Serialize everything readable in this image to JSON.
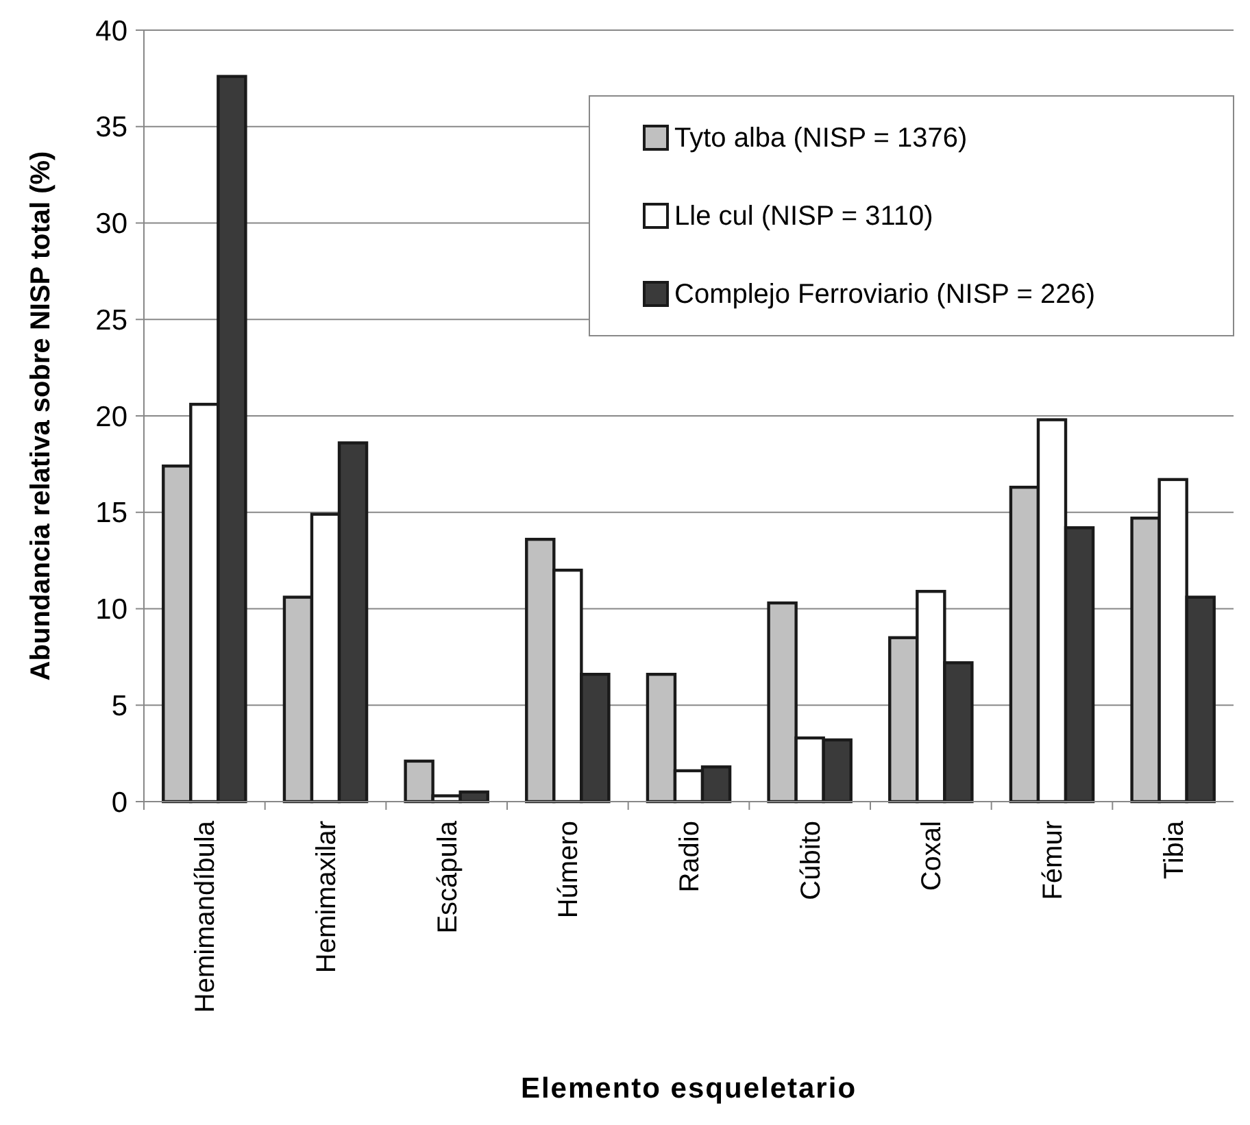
{
  "chart_data": {
    "type": "bar",
    "xlabel": "Elemento esqueletario",
    "ylabel": "Abundancia relativa sobre NISP total (%)",
    "categories": [
      "Hemimandíbula",
      "Hemimaxilar",
      "Escápula",
      "Húmero",
      "Radio",
      "Cúbito",
      "Coxal",
      "Fémur",
      "Tibia"
    ],
    "series": [
      {
        "name": "Tyto alba (NISP = 1376)",
        "color": "#c0c0c0",
        "values": [
          17.4,
          10.6,
          2.1,
          13.6,
          6.6,
          10.3,
          8.5,
          16.3,
          14.7
        ]
      },
      {
        "name": "Lle cul (NISP = 3110)",
        "color": "#ffffff",
        "values": [
          20.6,
          14.9,
          0.3,
          12.0,
          1.6,
          3.3,
          10.9,
          19.8,
          16.7
        ]
      },
      {
        "name": "Complejo Ferroviario (NISP = 226)",
        "color": "#3a3a3a",
        "values": [
          37.6,
          18.6,
          0.5,
          6.6,
          1.8,
          3.2,
          7.2,
          14.2,
          10.6
        ]
      }
    ],
    "ylim": [
      0,
      40
    ],
    "yticks": [
      0,
      5,
      10,
      15,
      20,
      25,
      30,
      35,
      40
    ],
    "grid": "y",
    "legend": "top right"
  }
}
